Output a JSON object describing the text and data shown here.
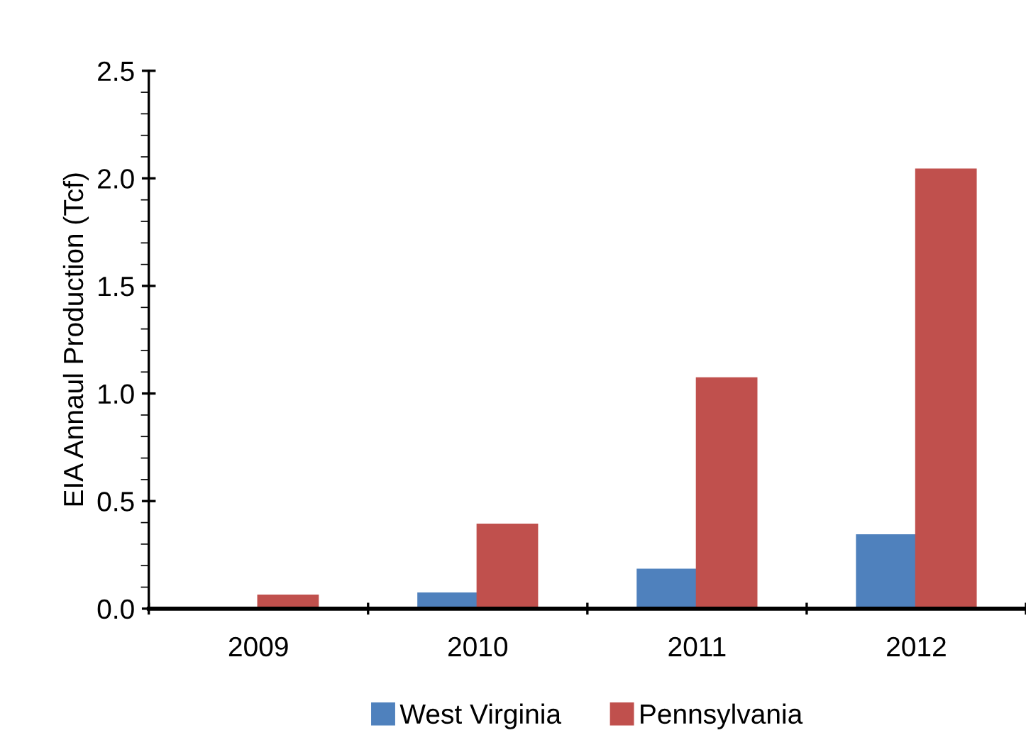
{
  "chart_data": {
    "type": "bar",
    "ylabel": "EIA Annaul Production (Tcf)",
    "categories": [
      "2009",
      "2010",
      "2011",
      "2012"
    ],
    "series": [
      {
        "name": "West Virginia",
        "color": "#4f81bd",
        "values": [
          0,
          0.07,
          0.18,
          0.34
        ]
      },
      {
        "name": "Pennsylvania",
        "color": "#c0504d",
        "values": [
          0.06,
          0.39,
          1.07,
          2.04
        ]
      }
    ],
    "ylim": [
      0,
      2.5
    ],
    "yticks": [
      {
        "value": 0,
        "label": "0.0"
      },
      {
        "value": 0.5,
        "label": "0.5"
      },
      {
        "value": 1.0,
        "label": "1.0"
      },
      {
        "value": 1.5,
        "label": "1.5"
      },
      {
        "value": 2.0,
        "label": "2.0"
      },
      {
        "value": 2.5,
        "label": "2.5"
      }
    ],
    "grid": false,
    "legend": "bottom"
  }
}
